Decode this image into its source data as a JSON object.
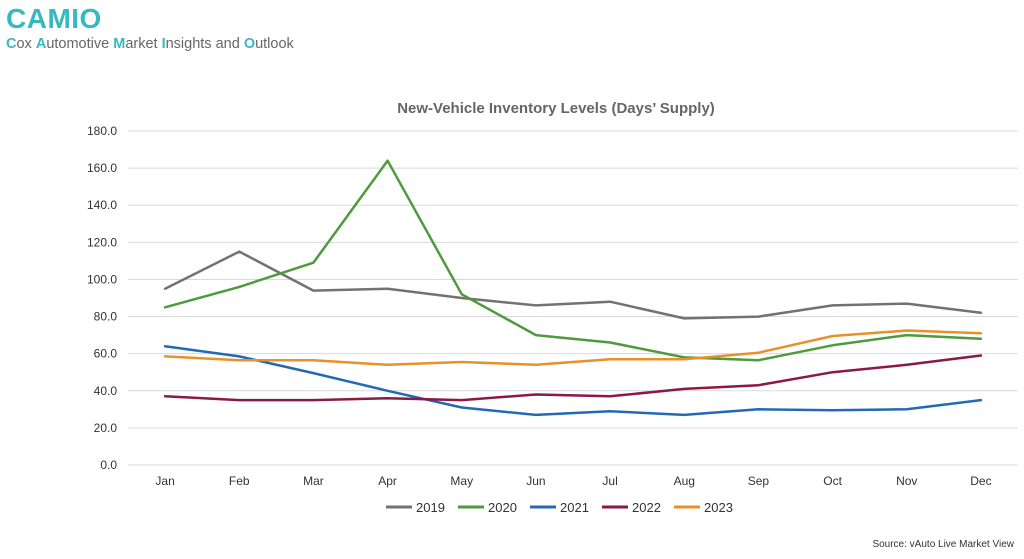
{
  "brand": {
    "title": "CAMIO",
    "subtitle_parts": [
      {
        "t": "C",
        "hl": true
      },
      {
        "t": "ox ",
        "hl": false
      },
      {
        "t": "A",
        "hl": true
      },
      {
        "t": "utomotive ",
        "hl": false
      },
      {
        "t": "M",
        "hl": true
      },
      {
        "t": "arket ",
        "hl": false
      },
      {
        "t": "I",
        "hl": true
      },
      {
        "t": "nsights and ",
        "hl": false
      },
      {
        "t": "O",
        "hl": true
      },
      {
        "t": "utlook",
        "hl": false
      }
    ]
  },
  "source": "Source: vAuto Live Market View",
  "colors": {
    "brand": "#37b9c1",
    "grid": "#d9d9d9",
    "axis_text": "#333333",
    "title_text": "#666666"
  },
  "chart_data": {
    "type": "line",
    "title": "New-Vehicle Inventory Levels (Days’ Supply)",
    "xlabel": "",
    "ylabel": "",
    "categories": [
      "Jan",
      "Feb",
      "Mar",
      "Apr",
      "May",
      "Jun",
      "Jul",
      "Aug",
      "Sep",
      "Oct",
      "Nov",
      "Dec"
    ],
    "ylim": [
      0,
      180
    ],
    "yticks": [
      "0.0",
      "20.0",
      "40.0",
      "60.0",
      "80.0",
      "100.0",
      "120.0",
      "140.0",
      "160.0",
      "180.0"
    ],
    "grid": true,
    "legend_position": "bottom",
    "series": [
      {
        "name": "2019",
        "color": "#767171",
        "values": [
          95,
          115,
          94,
          95,
          90,
          86,
          88,
          79,
          80,
          86,
          87,
          82
        ]
      },
      {
        "name": "2020",
        "color": "#4e9a3c",
        "values": [
          85,
          96,
          109,
          164,
          92,
          70,
          66,
          58,
          56.5,
          64.5,
          70,
          68
        ]
      },
      {
        "name": "2021",
        "color": "#2369b3",
        "values": [
          64,
          58.5,
          49.5,
          40,
          31,
          27,
          29,
          27,
          30,
          29.5,
          30,
          35
        ]
      },
      {
        "name": "2022",
        "color": "#8a1a45",
        "values": [
          37,
          35,
          35,
          36,
          35,
          38,
          37,
          41,
          43,
          50,
          54,
          59
        ]
      },
      {
        "name": "2023",
        "color": "#e8902b",
        "values": [
          58.5,
          56.5,
          56.5,
          54,
          55.5,
          54,
          57,
          57,
          60.5,
          69.5,
          72.5,
          71
        ]
      }
    ]
  }
}
